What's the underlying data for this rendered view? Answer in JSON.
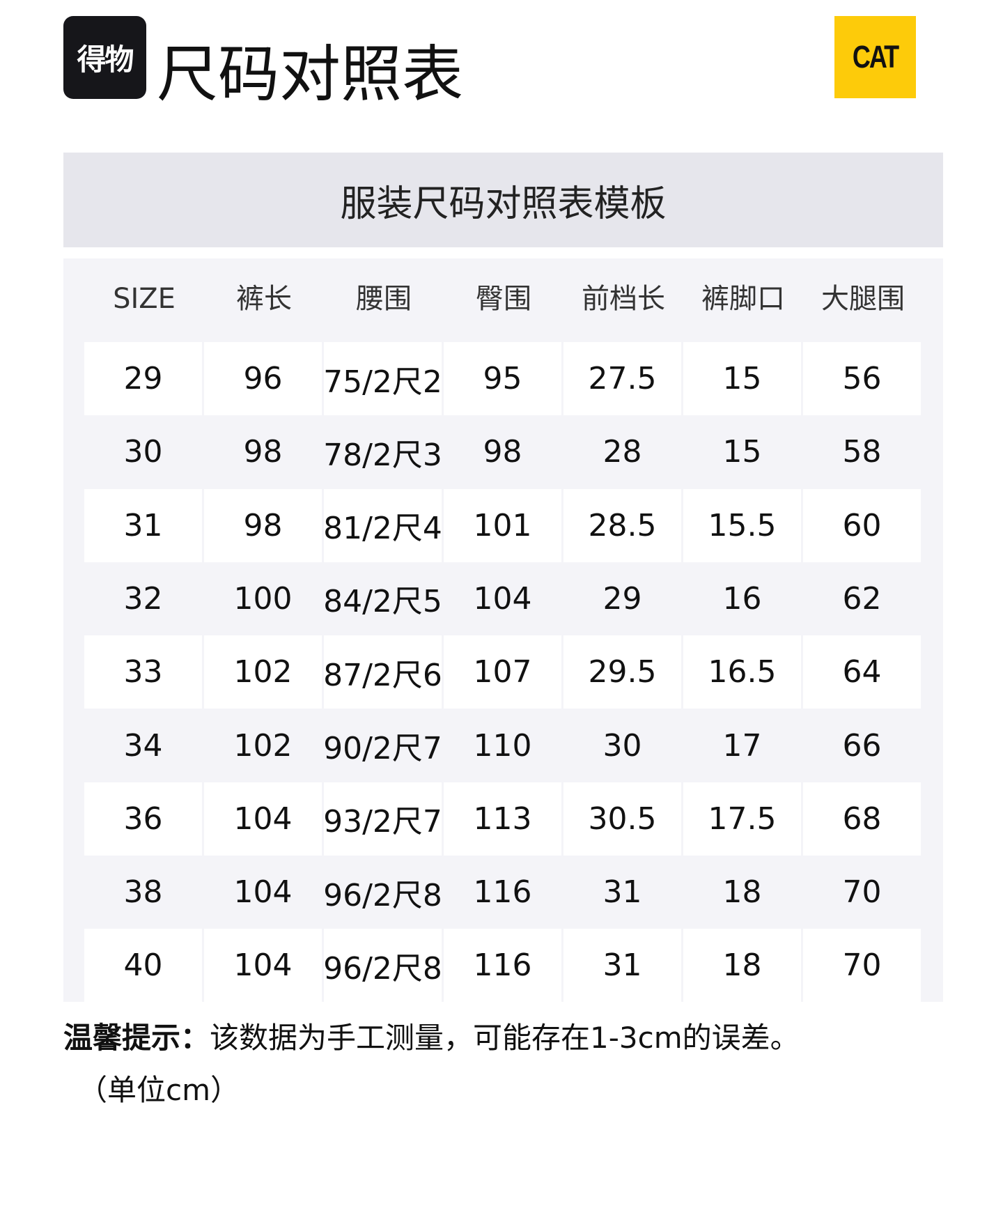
{
  "brand_logo": "得物",
  "title": "尺码对照表",
  "cat_logo": "CAT",
  "colors": {
    "cat_yellow": "#fdcb0a",
    "header_band": "#e6e6ec",
    "table_bg": "#f4f4f8"
  },
  "band_title": "服装尺码对照表模板",
  "columns": [
    "SIZE",
    "裤长",
    "腰围",
    "臀围",
    "前档长",
    "裤脚口",
    "大腿围"
  ],
  "rows": [
    [
      "29",
      "96",
      "75/2尺2",
      "95",
      "27.5",
      "15",
      "56"
    ],
    [
      "30",
      "98",
      "78/2尺3",
      "98",
      "28",
      "15",
      "58"
    ],
    [
      "31",
      "98",
      "81/2尺4",
      "101",
      "28.5",
      "15.5",
      "60"
    ],
    [
      "32",
      "100",
      "84/2尺5",
      "104",
      "29",
      "16",
      "62"
    ],
    [
      "33",
      "102",
      "87/2尺6",
      "107",
      "29.5",
      "16.5",
      "64"
    ],
    [
      "34",
      "102",
      "90/2尺7",
      "110",
      "30",
      "17",
      "66"
    ],
    [
      "36",
      "104",
      "93/2尺7",
      "113",
      "30.5",
      "17.5",
      "68"
    ],
    [
      "38",
      "104",
      "96/2尺8",
      "116",
      "31",
      "18",
      "70"
    ],
    [
      "40",
      "104",
      "96/2尺8",
      "116",
      "31",
      "18",
      "70"
    ]
  ],
  "note": {
    "label": "温馨提示：",
    "text": "该数据为手工测量，可能存在1-3cm的误差。",
    "unit": "（单位cm）"
  }
}
